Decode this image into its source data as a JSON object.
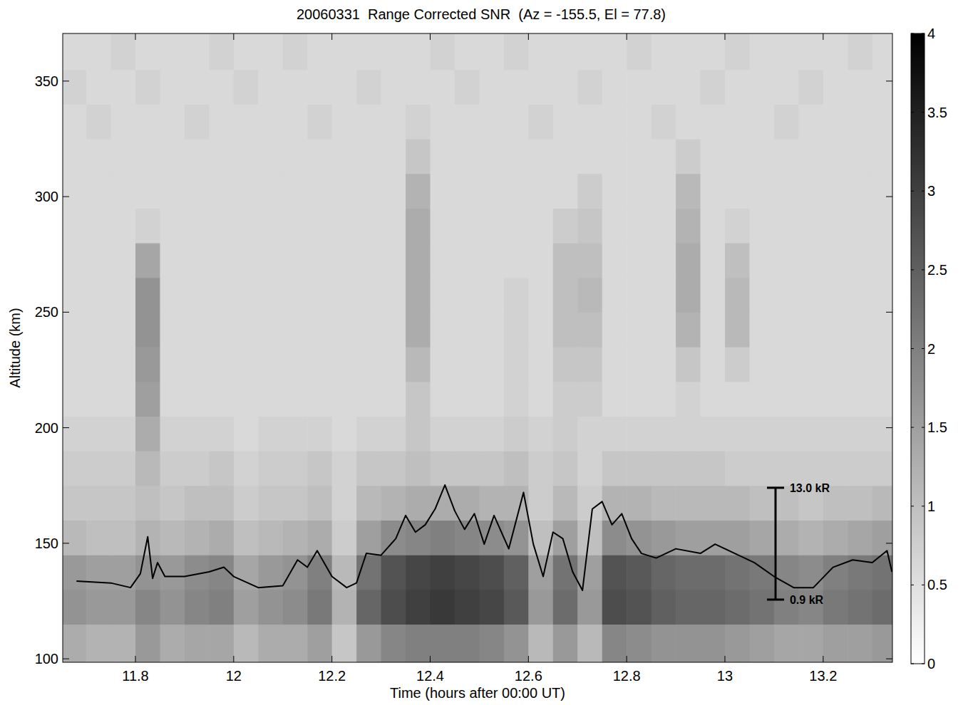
{
  "chart_data": {
    "type": "heatmap",
    "title": "20060331  Range Corrected SNR  (Az = -155.5, El = 77.8)",
    "x_label": "Time (hours after 00:00 UT)",
    "y_label": "Altitude (km)",
    "xlim": [
      11.652,
      13.341
    ],
    "ylim": [
      98.5,
      370.6
    ],
    "xticks": [
      11.8,
      12,
      12.2,
      12.4,
      12.6,
      12.8,
      13,
      13.2
    ],
    "yticks": [
      100,
      150,
      200,
      250,
      300,
      350
    ],
    "x_bins": [
      11.652,
      11.7,
      11.75,
      11.8,
      11.85,
      11.9,
      11.95,
      12.0,
      12.05,
      12.1,
      12.15,
      12.2,
      12.25,
      12.3,
      12.35,
      12.4,
      12.45,
      12.5,
      12.55,
      12.6,
      12.65,
      12.7,
      12.75,
      12.8,
      12.85,
      12.9,
      12.95,
      13.0,
      13.05,
      13.1,
      13.15,
      13.2,
      13.25,
      13.3,
      13.341
    ],
    "y_bins": [
      98.5,
      115,
      130,
      145,
      160,
      175,
      190,
      205,
      220,
      235,
      250,
      265,
      280,
      295,
      310,
      325,
      340,
      355,
      370.6
    ],
    "cells": [
      [
        1.3,
        1.2,
        1.2,
        1.6,
        1.3,
        1.4,
        1.4,
        1.1,
        1.3,
        1.3,
        1.5,
        0.9,
        1.6,
        1.9,
        2.0,
        2.0,
        2.0,
        1.9,
        1.7,
        1.1,
        1.6,
        1.1,
        1.9,
        1.8,
        1.7,
        1.7,
        1.7,
        1.6,
        1.5,
        1.4,
        1.4,
        1.5,
        1.5,
        1.6
      ],
      [
        1.7,
        1.6,
        1.6,
        1.9,
        1.7,
        1.9,
        2.0,
        1.5,
        1.7,
        1.8,
        2.1,
        1.2,
        2.4,
        2.8,
        3.0,
        3.1,
        3.0,
        2.9,
        2.6,
        1.6,
        2.3,
        1.6,
        2.8,
        2.7,
        2.5,
        2.4,
        2.4,
        2.3,
        2.2,
        2.0,
        1.9,
        2.1,
        2.2,
        2.3
      ],
      [
        1.6,
        1.5,
        1.5,
        1.7,
        1.6,
        1.8,
        1.9,
        1.4,
        1.6,
        1.7,
        2.0,
        1.1,
        2.2,
        2.7,
        2.9,
        3.0,
        2.9,
        2.8,
        2.5,
        1.5,
        2.2,
        1.5,
        2.7,
        2.6,
        2.4,
        2.3,
        2.3,
        2.2,
        2.1,
        1.9,
        1.8,
        2.0,
        2.1,
        2.2
      ],
      [
        1.1,
        1.0,
        1.0,
        1.2,
        1.1,
        1.2,
        1.3,
        1.0,
        1.1,
        1.2,
        1.3,
        0.8,
        1.5,
        1.8,
        1.9,
        2.0,
        1.9,
        1.8,
        1.7,
        1.0,
        1.5,
        1.0,
        1.8,
        1.7,
        1.6,
        1.5,
        1.5,
        1.5,
        1.4,
        1.3,
        1.2,
        1.3,
        1.4,
        1.5
      ],
      [
        0.9,
        0.9,
        0.9,
        1.0,
        0.9,
        1.0,
        1.0,
        0.8,
        0.9,
        0.9,
        1.0,
        0.7,
        1.1,
        1.2,
        1.3,
        1.3,
        1.3,
        1.2,
        1.2,
        0.8,
        1.1,
        0.8,
        1.2,
        1.2,
        1.1,
        1.1,
        1.1,
        1.1,
        1.0,
        1.0,
        0.9,
        1.0,
        1.0,
        1.1
      ],
      [
        0.8,
        0.8,
        0.8,
        1.1,
        0.8,
        0.8,
        0.9,
        0.7,
        0.8,
        0.8,
        0.9,
        0.7,
        0.9,
        0.9,
        1.0,
        0.9,
        0.9,
        0.9,
        1.0,
        0.8,
        0.9,
        0.7,
        0.9,
        0.9,
        0.9,
        0.9,
        0.9,
        0.8,
        0.8,
        0.8,
        0.8,
        0.8,
        0.8,
        0.8
      ],
      [
        0.7,
        0.7,
        0.7,
        1.3,
        0.7,
        0.7,
        0.7,
        0.6,
        0.7,
        0.7,
        0.7,
        0.6,
        0.7,
        0.7,
        0.9,
        0.7,
        0.7,
        0.7,
        0.8,
        0.7,
        0.8,
        0.7,
        0.7,
        0.7,
        0.7,
        0.7,
        0.7,
        0.7,
        0.7,
        0.7,
        0.7,
        0.7,
        0.7,
        0.7
      ],
      [
        0.6,
        0.6,
        0.6,
        1.5,
        0.6,
        0.6,
        0.6,
        0.6,
        0.6,
        0.6,
        0.6,
        0.6,
        0.6,
        0.6,
        0.9,
        0.6,
        0.6,
        0.6,
        0.7,
        0.6,
        0.8,
        0.8,
        0.6,
        0.6,
        0.6,
        0.7,
        0.6,
        0.6,
        0.6,
        0.6,
        0.6,
        0.6,
        0.6,
        0.6
      ],
      [
        0.6,
        0.6,
        0.6,
        1.6,
        0.6,
        0.6,
        0.6,
        0.6,
        0.6,
        0.6,
        0.6,
        0.6,
        0.6,
        0.6,
        1.1,
        0.6,
        0.6,
        0.6,
        0.7,
        0.6,
        0.9,
        0.9,
        0.6,
        0.6,
        0.6,
        0.9,
        0.6,
        0.8,
        0.6,
        0.6,
        0.6,
        0.6,
        0.6,
        0.6
      ],
      [
        0.6,
        0.6,
        0.6,
        1.7,
        0.6,
        0.6,
        0.6,
        0.6,
        0.6,
        0.6,
        0.6,
        0.6,
        0.6,
        0.6,
        1.3,
        0.6,
        0.6,
        0.6,
        0.7,
        0.6,
        1.0,
        1.0,
        0.6,
        0.6,
        0.6,
        1.2,
        0.6,
        1.1,
        0.6,
        0.6,
        0.6,
        0.6,
        0.6,
        0.6
      ],
      [
        0.6,
        0.6,
        0.6,
        1.7,
        0.6,
        0.6,
        0.6,
        0.6,
        0.6,
        0.6,
        0.6,
        0.6,
        0.6,
        0.6,
        1.3,
        0.6,
        0.6,
        0.6,
        0.7,
        0.6,
        1.0,
        1.1,
        0.6,
        0.6,
        0.6,
        1.3,
        0.6,
        1.1,
        0.6,
        0.6,
        0.6,
        0.6,
        0.6,
        0.6
      ],
      [
        0.6,
        0.6,
        0.6,
        1.4,
        0.6,
        0.6,
        0.6,
        0.6,
        0.6,
        0.6,
        0.6,
        0.6,
        0.6,
        0.6,
        1.3,
        0.6,
        0.6,
        0.6,
        0.6,
        0.6,
        1.0,
        1.0,
        0.6,
        0.6,
        0.6,
        1.3,
        0.6,
        1.0,
        0.6,
        0.6,
        0.6,
        0.6,
        0.6,
        0.6
      ],
      [
        0.6,
        0.6,
        0.6,
        0.7,
        0.6,
        0.6,
        0.6,
        0.6,
        0.6,
        0.6,
        0.6,
        0.6,
        0.6,
        0.6,
        1.3,
        0.6,
        0.6,
        0.6,
        0.6,
        0.6,
        0.8,
        0.9,
        0.6,
        0.6,
        0.6,
        1.2,
        0.6,
        0.7,
        0.6,
        0.6,
        0.6,
        0.6,
        0.6,
        0.6
      ],
      [
        0.6,
        0.6,
        0.6,
        0.6,
        0.6,
        0.6,
        0.6,
        0.6,
        0.6,
        0.6,
        0.6,
        0.6,
        0.6,
        0.6,
        1.2,
        0.6,
        0.6,
        0.6,
        0.6,
        0.6,
        0.6,
        0.8,
        0.6,
        0.6,
        0.6,
        1.1,
        0.6,
        0.6,
        0.6,
        0.6,
        0.6,
        0.6,
        0.6,
        0.6
      ],
      [
        0.6,
        0.6,
        0.6,
        0.6,
        0.6,
        0.6,
        0.6,
        0.6,
        0.6,
        0.6,
        0.6,
        0.6,
        0.6,
        0.6,
        0.9,
        0.6,
        0.6,
        0.6,
        0.6,
        0.6,
        0.6,
        0.6,
        0.6,
        0.6,
        0.6,
        0.8,
        0.6,
        0.6,
        0.6,
        0.6,
        0.6,
        0.6,
        0.6,
        0.6
      ],
      [
        0.6,
        0.7,
        0.6,
        0.6,
        0.6,
        0.7,
        0.6,
        0.6,
        0.6,
        0.6,
        0.7,
        0.6,
        0.6,
        0.6,
        0.7,
        0.6,
        0.6,
        0.6,
        0.6,
        0.7,
        0.6,
        0.6,
        0.6,
        0.6,
        0.7,
        0.6,
        0.6,
        0.6,
        0.6,
        0.7,
        0.6,
        0.6,
        0.6,
        0.6
      ],
      [
        0.7,
        0.6,
        0.6,
        0.7,
        0.6,
        0.6,
        0.6,
        0.7,
        0.6,
        0.6,
        0.6,
        0.6,
        0.7,
        0.6,
        0.6,
        0.6,
        0.7,
        0.6,
        0.6,
        0.6,
        0.6,
        0.7,
        0.6,
        0.6,
        0.6,
        0.6,
        0.7,
        0.6,
        0.6,
        0.6,
        0.7,
        0.6,
        0.6,
        0.6
      ],
      [
        0.6,
        0.6,
        0.7,
        0.6,
        0.6,
        0.6,
        0.7,
        0.6,
        0.6,
        0.7,
        0.6,
        0.6,
        0.6,
        0.6,
        0.6,
        0.7,
        0.6,
        0.6,
        0.7,
        0.6,
        0.6,
        0.6,
        0.6,
        0.7,
        0.6,
        0.6,
        0.6,
        0.7,
        0.6,
        0.6,
        0.6,
        0.6,
        0.7,
        0.6
      ]
    ],
    "color_range": [
      0,
      4
    ],
    "color_ticks": [
      0,
      0.5,
      1,
      1.5,
      2,
      2.5,
      3,
      3.5,
      4
    ],
    "y2lim": [
      -5.88,
      62.15
    ],
    "series": [
      {
        "type": "line",
        "color": "#000000",
        "axis": "y2",
        "x": [
          11.68,
          11.75,
          11.79,
          11.81,
          11.825,
          11.835,
          11.845,
          11.86,
          11.9,
          11.95,
          11.98,
          12.0,
          12.05,
          12.1,
          12.13,
          12.15,
          12.17,
          12.2,
          12.23,
          12.25,
          12.27,
          12.3,
          12.33,
          12.35,
          12.37,
          12.39,
          12.41,
          12.43,
          12.45,
          12.47,
          12.49,
          12.51,
          12.53,
          12.56,
          12.59,
          12.61,
          12.63,
          12.65,
          12.67,
          12.69,
          12.71,
          12.73,
          12.75,
          12.77,
          12.79,
          12.81,
          12.83,
          12.86,
          12.9,
          12.95,
          12.98,
          13.02,
          13.06,
          13.1,
          13.14,
          13.18,
          13.22,
          13.26,
          13.3,
          13.33,
          13.34
        ],
        "values": [
          2.9,
          2.7,
          2.2,
          3.7,
          7.7,
          3.2,
          4.9,
          3.4,
          3.4,
          3.9,
          4.4,
          3.4,
          2.2,
          2.4,
          5.2,
          4.4,
          6.2,
          3.4,
          2.2,
          2.7,
          5.9,
          5.7,
          7.5,
          10.0,
          8.2,
          9.0,
          10.7,
          13.3,
          10.5,
          8.5,
          10.2,
          6.9,
          10.0,
          6.4,
          12.5,
          6.9,
          3.4,
          8.2,
          7.5,
          3.9,
          1.9,
          10.7,
          11.5,
          9.0,
          10.2,
          7.5,
          5.9,
          5.4,
          6.4,
          5.9,
          6.9,
          5.9,
          4.9,
          3.4,
          2.2,
          2.2,
          4.4,
          5.2,
          4.9,
          6.2,
          3.9
        ]
      }
    ],
    "annotations": [
      {
        "text": "13.0 kR",
        "value": 13.0,
        "x": 13.103
      },
      {
        "text": "0.9 kR",
        "value": 0.9,
        "x": 13.103
      }
    ]
  }
}
